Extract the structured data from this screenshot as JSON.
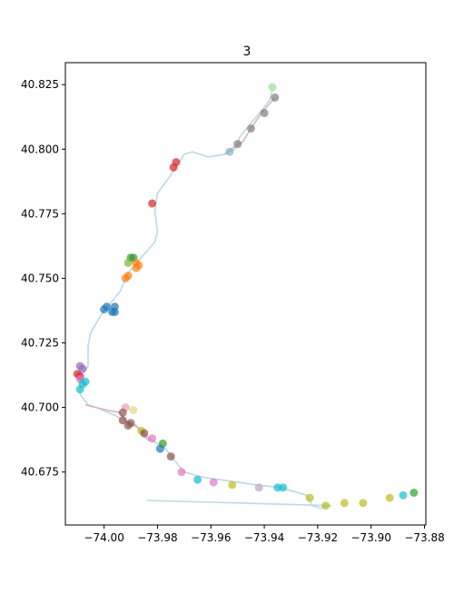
{
  "chart_data": {
    "type": "scatter",
    "title": "3",
    "xlabel": "",
    "ylabel": "",
    "xlim": [
      -74.0145,
      -73.8795
    ],
    "ylim": [
      40.6545,
      40.8335
    ],
    "x_ticks": [
      -74.0,
      -73.98,
      -73.96,
      -73.94,
      -73.92,
      -73.9,
      -73.88
    ],
    "x_tick_labels": [
      "−74.00",
      "−73.98",
      "−73.96",
      "−73.94",
      "−73.92",
      "−73.90",
      "−73.88"
    ],
    "y_ticks": [
      40.675,
      40.7,
      40.725,
      40.75,
      40.775,
      40.8,
      40.825
    ],
    "y_tick_labels": [
      "40.675",
      "40.700",
      "40.725",
      "40.750",
      "40.775",
      "40.800",
      "40.825"
    ],
    "grid": false,
    "legend": "none",
    "route_lines": [
      {
        "color": "#bcd9e8",
        "points": [
          [
            -73.984,
            40.664
          ],
          [
            -73.915,
            40.662
          ],
          [
            -73.919,
            40.661
          ],
          [
            -73.922,
            40.662
          ],
          [
            -73.924,
            40.666
          ],
          [
            -73.934,
            40.669
          ],
          [
            -73.943,
            40.67
          ],
          [
            -73.963,
            40.673
          ],
          [
            -73.97,
            40.675
          ],
          [
            -73.974,
            40.68
          ],
          [
            -73.977,
            40.684
          ],
          [
            -73.983,
            40.688
          ],
          [
            -73.987,
            40.692
          ],
          [
            -73.991,
            40.694
          ],
          [
            -73.996,
            40.697
          ],
          [
            -74.003,
            40.7
          ],
          [
            -74.006,
            40.701
          ],
          [
            -74.009,
            40.705
          ],
          [
            -74.009,
            40.712
          ],
          [
            -74.006,
            40.716
          ],
          [
            -74.006,
            40.724
          ],
          [
            -74.005,
            40.729
          ],
          [
            -74.001,
            40.736
          ],
          [
            -73.994,
            40.745
          ],
          [
            -73.991,
            40.752
          ],
          [
            -73.987,
            40.757
          ],
          [
            -73.981,
            40.764
          ],
          [
            -73.98,
            40.768
          ],
          [
            -73.981,
            40.776
          ],
          [
            -73.98,
            40.783
          ],
          [
            -73.975,
            40.79
          ],
          [
            -73.97,
            40.798
          ],
          [
            -73.967,
            40.799
          ],
          [
            -73.961,
            40.797
          ],
          [
            -73.955,
            40.798
          ],
          [
            -73.951,
            40.8
          ],
          [
            -73.949,
            40.805
          ],
          [
            -73.945,
            40.81
          ],
          [
            -73.941,
            40.815
          ],
          [
            -73.938,
            40.819
          ],
          [
            -73.937,
            40.823
          ]
        ]
      },
      {
        "color": "#d9b3bd",
        "points": [
          [
            -73.955,
            40.798
          ],
          [
            -73.951,
            40.801
          ],
          [
            -73.948,
            40.803
          ],
          [
            -73.945,
            40.808
          ],
          [
            -73.941,
            40.814
          ],
          [
            -73.936,
            40.82
          ]
        ]
      },
      {
        "color": "#d9b3bd",
        "points": [
          [
            -74.007,
            40.701
          ],
          [
            -73.999,
            40.699
          ],
          [
            -73.994,
            40.698
          ],
          [
            -73.992,
            40.695
          ],
          [
            -73.988,
            40.693
          ],
          [
            -73.985,
            40.689
          ],
          [
            -73.983,
            40.687
          ]
        ]
      }
    ],
    "points": [
      {
        "x": -73.937,
        "y": 40.824,
        "color": "#98df8a"
      },
      {
        "x": -73.936,
        "y": 40.82,
        "color": "#7f7f7f"
      },
      {
        "x": -73.94,
        "y": 40.814,
        "color": "#7f7f7f"
      },
      {
        "x": -73.945,
        "y": 40.808,
        "color": "#7f7f7f"
      },
      {
        "x": -73.95,
        "y": 40.802,
        "color": "#7f7f7f"
      },
      {
        "x": -73.953,
        "y": 40.799,
        "color": "#7fb2d0"
      },
      {
        "x": -73.973,
        "y": 40.795,
        "color": "#d62728"
      },
      {
        "x": -73.974,
        "y": 40.793,
        "color": "#d62728"
      },
      {
        "x": -73.982,
        "y": 40.779,
        "color": "#d62728"
      },
      {
        "x": -73.99,
        "y": 40.758,
        "color": "#2ca02c"
      },
      {
        "x": -73.989,
        "y": 40.758,
        "color": "#2ca02c"
      },
      {
        "x": -73.991,
        "y": 40.756,
        "color": "#7fb23c"
      },
      {
        "x": -73.988,
        "y": 40.756,
        "color": "#ff7f0e"
      },
      {
        "x": -73.987,
        "y": 40.755,
        "color": "#ff7f0e"
      },
      {
        "x": -73.988,
        "y": 40.754,
        "color": "#ff7f0e"
      },
      {
        "x": -73.991,
        "y": 40.751,
        "color": "#ff7f0e"
      },
      {
        "x": -73.992,
        "y": 40.75,
        "color": "#ff7f0e"
      },
      {
        "x": -73.996,
        "y": 40.739,
        "color": "#1f77b4"
      },
      {
        "x": -74.0,
        "y": 40.738,
        "color": "#1f77b4"
      },
      {
        "x": -73.999,
        "y": 40.739,
        "color": "#1f77b4"
      },
      {
        "x": -73.997,
        "y": 40.737,
        "color": "#1f77b4"
      },
      {
        "x": -73.996,
        "y": 40.737,
        "color": "#1f77b4"
      },
      {
        "x": -74.009,
        "y": 40.716,
        "color": "#9467bd"
      },
      {
        "x": -74.008,
        "y": 40.715,
        "color": "#9467bd"
      },
      {
        "x": -74.01,
        "y": 40.713,
        "color": "#d62728"
      },
      {
        "x": -74.009,
        "y": 40.712,
        "color": "#d62728"
      },
      {
        "x": -74.009,
        "y": 40.711,
        "color": "#e377c2"
      },
      {
        "x": -74.007,
        "y": 40.71,
        "color": "#17becf"
      },
      {
        "x": -74.008,
        "y": 40.709,
        "color": "#17becf"
      },
      {
        "x": -74.009,
        "y": 40.707,
        "color": "#17becf"
      },
      {
        "x": -73.992,
        "y": 40.7,
        "color": "#e8a0a8"
      },
      {
        "x": -73.989,
        "y": 40.699,
        "color": "#dbdb8d"
      },
      {
        "x": -73.993,
        "y": 40.698,
        "color": "#8c564b"
      },
      {
        "x": -73.993,
        "y": 40.695,
        "color": "#8c564b"
      },
      {
        "x": -73.99,
        "y": 40.694,
        "color": "#8c564b"
      },
      {
        "x": -73.991,
        "y": 40.693,
        "color": "#8c564b"
      },
      {
        "x": -73.986,
        "y": 40.691,
        "color": "#bcbd22"
      },
      {
        "x": -73.985,
        "y": 40.69,
        "color": "#8c564b"
      },
      {
        "x": -73.982,
        "y": 40.688,
        "color": "#e377c2"
      },
      {
        "x": -73.978,
        "y": 40.686,
        "color": "#2ca02c"
      },
      {
        "x": -73.979,
        "y": 40.684,
        "color": "#1f77b4"
      },
      {
        "x": -73.975,
        "y": 40.681,
        "color": "#8c564b"
      },
      {
        "x": -73.971,
        "y": 40.675,
        "color": "#e377c2"
      },
      {
        "x": -73.965,
        "y": 40.672,
        "color": "#17becf"
      },
      {
        "x": -73.959,
        "y": 40.671,
        "color": "#e377c2"
      },
      {
        "x": -73.952,
        "y": 40.67,
        "color": "#bcbd22"
      },
      {
        "x": -73.942,
        "y": 40.669,
        "color": "#c5a0c8"
      },
      {
        "x": -73.935,
        "y": 40.669,
        "color": "#17becf"
      },
      {
        "x": -73.933,
        "y": 40.669,
        "color": "#17becf"
      },
      {
        "x": -73.923,
        "y": 40.665,
        "color": "#bcbd22"
      },
      {
        "x": -73.917,
        "y": 40.662,
        "color": "#bcbd22"
      },
      {
        "x": -73.91,
        "y": 40.663,
        "color": "#bcbd22"
      },
      {
        "x": -73.903,
        "y": 40.663,
        "color": "#bcbd22"
      },
      {
        "x": -73.893,
        "y": 40.665,
        "color": "#bcbd22"
      },
      {
        "x": -73.888,
        "y": 40.666,
        "color": "#17becf"
      },
      {
        "x": -73.884,
        "y": 40.667,
        "color": "#2ca02c"
      }
    ]
  }
}
